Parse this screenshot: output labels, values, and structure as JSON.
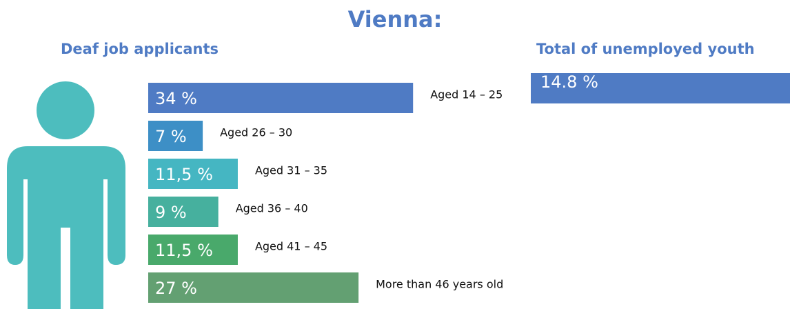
{
  "title": "Vienna:",
  "chart_data": [
    {
      "type": "bar",
      "orientation": "horizontal",
      "title": "Deaf job applicants",
      "categories": [
        "Aged 14 – 25",
        "Aged 26 – 30",
        "Aged 31 – 35",
        "Aged 36 – 40",
        "Aged 41 – 45",
        "More than 46 years old"
      ],
      "values": [
        34,
        7,
        11.5,
        9,
        11.5,
        27
      ],
      "value_labels": [
        "34 %",
        "7 %",
        "11,5 %",
        "9 %",
        "11,5 %",
        "27 %"
      ],
      "colors": [
        "#4f7bc4",
        "#3d8fc6",
        "#45b6c2",
        "#46b09e",
        "#49a96b",
        "#63a072"
      ]
    },
    {
      "type": "bar",
      "orientation": "horizontal",
      "title": "Total of unemployed youth",
      "values": [
        14.8
      ],
      "value_labels": [
        "14.8 %"
      ],
      "colors": [
        "#4f7bc4"
      ]
    }
  ]
}
